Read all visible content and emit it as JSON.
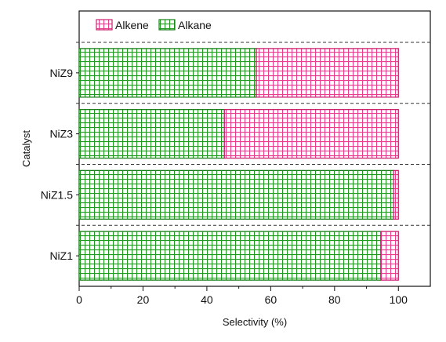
{
  "chart_data": {
    "type": "bar",
    "orientation": "horizontal",
    "stacked": true,
    "categories": [
      "NiZ1",
      "NiZ1.5",
      "NiZ3",
      "NiZ9"
    ],
    "series": [
      {
        "name": "Alkane",
        "values": [
          94.5,
          98.5,
          45.5,
          55.5
        ],
        "color": "#2aa02a",
        "pattern": "green-grid"
      },
      {
        "name": "Alkene",
        "values": [
          5.5,
          1.5,
          54.5,
          44.5
        ],
        "color": "#ee3f8f",
        "pattern": "pink-grid"
      }
    ],
    "legend_order": [
      "Alkene",
      "Alkane"
    ],
    "legend_position": "top-left",
    "xlabel": "Selectivity (%)",
    "ylabel": "Catalyst",
    "xlim": [
      0,
      110
    ],
    "xticks": [
      0,
      20,
      40,
      60,
      80,
      100
    ],
    "separators": "dashed"
  }
}
